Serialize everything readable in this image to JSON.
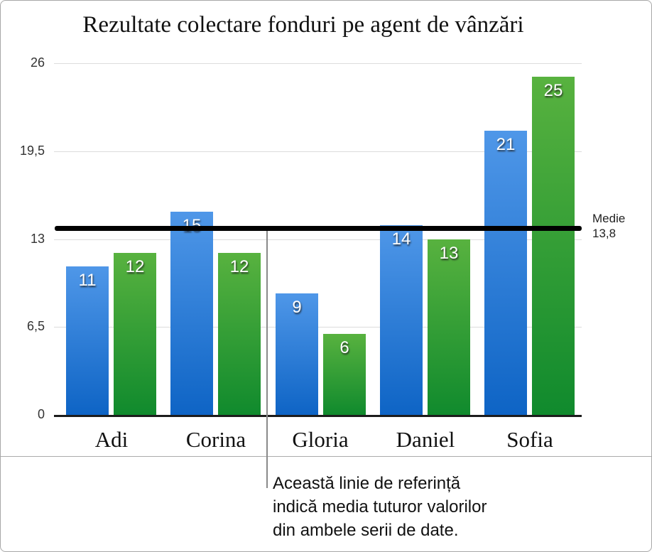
{
  "chart_data": {
    "type": "bar",
    "title": "Rezultate colectare fonduri pe agent de vânzări",
    "categories": [
      "Adi",
      "Corina",
      "Gloria",
      "Daniel",
      "Sofia"
    ],
    "series": [
      {
        "color_top": "#4F97E8",
        "color_bottom": "#0E64C5",
        "values": [
          11,
          15,
          9,
          14,
          21
        ]
      },
      {
        "color_top": "#58B23F",
        "color_bottom": "#108A2D",
        "values": [
          12,
          12,
          6,
          13,
          25
        ]
      }
    ],
    "ylim": [
      0,
      26
    ],
    "ytick_values": [
      0,
      6.5,
      13,
      19.5,
      26
    ],
    "ytick_labels": [
      "0",
      "6,5",
      "13",
      "19,5",
      "26"
    ],
    "grid": true,
    "legend_position": "none",
    "reference_line": {
      "value": 13.8,
      "color": "#000000",
      "label": [
        "Medie",
        "13,8"
      ]
    }
  },
  "callout": {
    "lines": [
      "Această linie de referință",
      "indică media tuturor valorilor",
      "din ambele serii de date."
    ]
  }
}
